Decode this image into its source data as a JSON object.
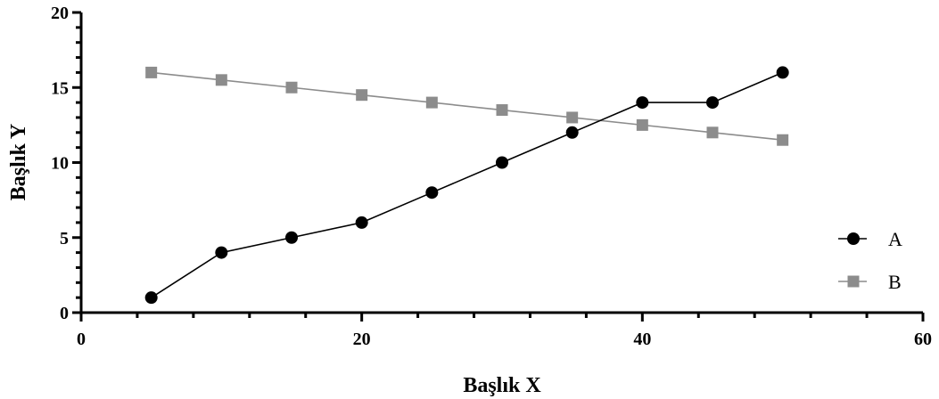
{
  "chart_data": {
    "type": "line",
    "title": "",
    "xlabel": "Başlık X",
    "ylabel": "Başlık Y",
    "xlim": [
      0,
      60
    ],
    "ylim": [
      0,
      20
    ],
    "x_ticks": [
      "0",
      "20",
      "40",
      "60"
    ],
    "y_ticks": [
      "0",
      "5",
      "10",
      "15",
      "20"
    ],
    "grid": false,
    "legend_position": "right",
    "series": [
      {
        "name": "A",
        "color": "#000000",
        "marker": "circle",
        "x": [
          5,
          10,
          15,
          20,
          25,
          30,
          35,
          40,
          45,
          50
        ],
        "y": [
          1,
          4,
          5,
          6,
          8,
          10,
          12,
          14,
          14,
          16
        ]
      },
      {
        "name": "B",
        "color": "#8c8c8c",
        "marker": "square",
        "x": [
          5,
          10,
          15,
          20,
          25,
          30,
          35,
          40,
          45,
          50
        ],
        "y": [
          16,
          15.5,
          15,
          14.5,
          14,
          13.5,
          13,
          12.5,
          12,
          11.5
        ]
      }
    ]
  }
}
